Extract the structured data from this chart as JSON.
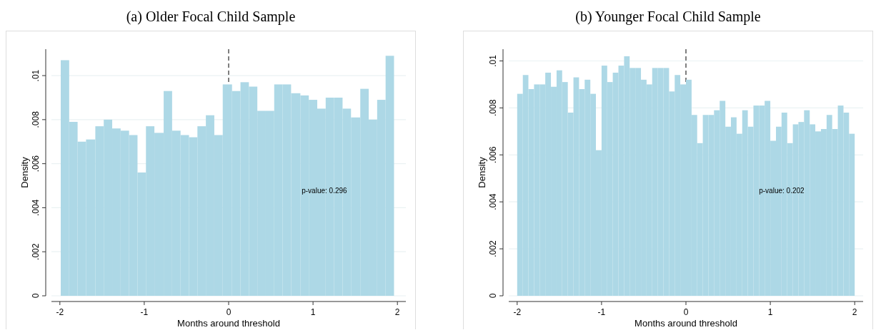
{
  "chart_data": [
    {
      "type": "histogram",
      "title": "(a) Older Focal Child Sample",
      "xlabel": "Months around threshold",
      "ylabel": "Density",
      "color": "#add8e6",
      "bins": [
        -1.99,
        -1.89,
        -1.79,
        -1.69,
        -1.58,
        -1.48,
        -1.38,
        -1.28,
        -1.18,
        -1.08,
        -0.98,
        -0.88,
        -0.77,
        -0.67,
        -0.57,
        -0.47,
        -0.37,
        -0.27,
        -0.17,
        -0.07,
        0.04,
        0.14,
        0.24,
        0.34,
        0.44,
        0.54,
        0.64,
        0.74,
        0.85,
        0.95,
        1.05,
        1.15,
        1.25,
        1.35,
        1.45,
        1.56,
        1.66,
        1.76,
        1.86,
        1.96
      ],
      "values": [
        0.0107,
        0.0079,
        0.007,
        0.0071,
        0.0077,
        0.008,
        0.0076,
        0.0075,
        0.0073,
        0.0056,
        0.0077,
        0.0074,
        0.0093,
        0.0075,
        0.0073,
        0.0072,
        0.0077,
        0.0082,
        0.0073,
        0.0096,
        0.0093,
        0.0097,
        0.0095,
        0.0084,
        0.0084,
        0.0096,
        0.0096,
        0.0092,
        0.0091,
        0.0089,
        0.0085,
        0.009,
        0.009,
        0.0085,
        0.0081,
        0.0094,
        0.008,
        0.0089,
        0.0109
      ],
      "xlim": [
        -2.1,
        2.1
      ],
      "ylim": [
        0,
        0.0112
      ],
      "xticks": [
        -2,
        -1,
        0,
        1,
        2
      ],
      "yticks": [
        0,
        {
          "value": 0.002,
          "label": ".002"
        },
        {
          "value": 0.004,
          "label": ".004"
        },
        {
          "value": 0.006,
          "label": ".006"
        },
        {
          "value": 0.008,
          "label": ".008"
        },
        {
          "value": 0.01,
          "label": ".01"
        }
      ],
      "grid": "y",
      "ref_lines": [
        {
          "axis": "x",
          "value": 0,
          "line_style": "dashed",
          "color": "#555555"
        }
      ],
      "annotations": [
        "p-value: 0.296"
      ]
    },
    {
      "type": "histogram",
      "title": "(b) Younger Focal Child Sample",
      "xlabel": "Months around threshold",
      "ylabel": "Density",
      "color": "#add8e6",
      "bins": [
        -2,
        -1.933,
        -1.867,
        -1.8,
        -1.733,
        -1.667,
        -1.6,
        -1.533,
        -1.467,
        -1.4,
        -1.333,
        -1.267,
        -1.2,
        -1.133,
        -1.067,
        -1,
        -0.933,
        -0.867,
        -0.8,
        -0.733,
        -0.667,
        -0.6,
        -0.533,
        -0.467,
        -0.4,
        -0.333,
        -0.267,
        -0.2,
        -0.133,
        -0.067,
        0,
        0.067,
        0.133,
        0.2,
        0.267,
        0.333,
        0.4,
        0.467,
        0.533,
        0.6,
        0.667,
        0.733,
        0.8,
        0.867,
        0.933,
        1,
        1.067,
        1.133,
        1.2,
        1.267,
        1.333,
        1.4,
        1.467,
        1.533,
        1.6,
        1.667,
        1.733,
        1.8,
        1.867,
        1.933,
        2
      ],
      "values": [
        0.0086,
        0.0094,
        0.0088,
        0.009,
        0.009,
        0.0095,
        0.0089,
        0.0096,
        0.0091,
        0.0078,
        0.0093,
        0.0088,
        0.0092,
        0.0086,
        0.0062,
        0.0098,
        0.0091,
        0.0095,
        0.0098,
        0.0102,
        0.0097,
        0.0097,
        0.0092,
        0.009,
        0.0097,
        0.0097,
        0.0097,
        0.0087,
        0.0094,
        0.009,
        0.0092,
        0.0077,
        0.0065,
        0.0077,
        0.0077,
        0.0079,
        0.0083,
        0.0072,
        0.0076,
        0.0069,
        0.0079,
        0.0072,
        0.0081,
        0.0081,
        0.0083,
        0.0066,
        0.0072,
        0.0078,
        0.0065,
        0.0073,
        0.0074,
        0.0079,
        0.0073,
        0.007,
        0.0071,
        0.0077,
        0.0071,
        0.0081,
        0.0078,
        0.0069
      ],
      "xlim": [
        -2.1,
        2.1
      ],
      "ylim": [
        0,
        0.0105
      ],
      "xticks": [
        -2,
        -1,
        0,
        1,
        2
      ],
      "yticks": [
        0,
        {
          "value": 0.002,
          "label": ".002"
        },
        {
          "value": 0.004,
          "label": ".004"
        },
        {
          "value": 0.006,
          "label": ".006"
        },
        {
          "value": 0.008,
          "label": ".008"
        },
        {
          "value": 0.01,
          "label": ".01"
        }
      ],
      "grid": "y",
      "ref_lines": [
        {
          "axis": "x",
          "value": 0,
          "line_style": "dashed",
          "color": "#555555"
        }
      ],
      "annotations": [
        "p-value: 0.202"
      ]
    }
  ]
}
